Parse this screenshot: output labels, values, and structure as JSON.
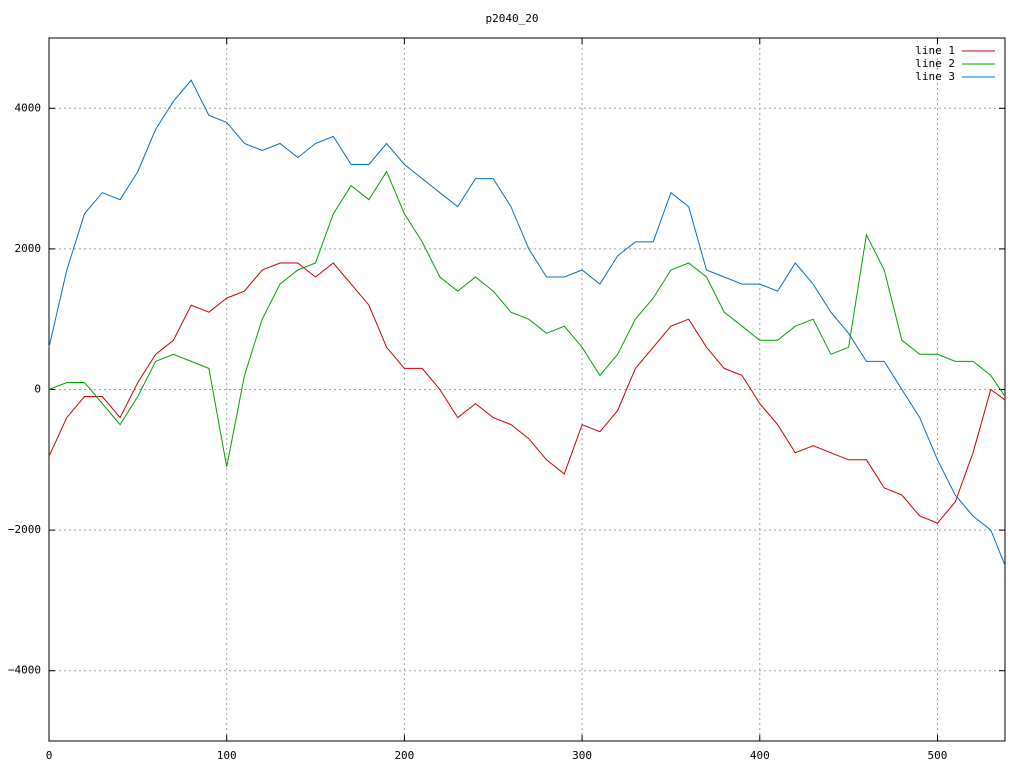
{
  "chart_data": {
    "type": "line",
    "title": "p2040_20",
    "x": [
      0,
      10,
      20,
      30,
      40,
      50,
      60,
      70,
      80,
      90,
      100,
      110,
      120,
      130,
      140,
      150,
      160,
      170,
      180,
      190,
      200,
      210,
      220,
      230,
      240,
      250,
      260,
      270,
      280,
      290,
      300,
      310,
      320,
      330,
      340,
      350,
      360,
      370,
      380,
      390,
      400,
      410,
      420,
      430,
      440,
      450,
      460,
      470,
      480,
      490,
      500,
      510,
      520,
      530,
      538
    ],
    "series": [
      {
        "name": "line 1",
        "color": "#cc0000",
        "values": [
          -950,
          -400,
          -100,
          -100,
          -400,
          100,
          500,
          700,
          1200,
          1100,
          1300,
          1400,
          1700,
          1800,
          1800,
          1600,
          1800,
          1500,
          1200,
          600,
          300,
          300,
          0,
          -400,
          -200,
          -400,
          -500,
          -700,
          -1000,
          -1200,
          -500,
          -600,
          -300,
          300,
          600,
          900,
          1000,
          600,
          300,
          200,
          -200,
          -500,
          -900,
          -800,
          -900,
          -1000,
          -1000,
          -1400,
          -1500,
          -1800,
          -1900,
          -1600,
          -900,
          0,
          -150
        ]
      },
      {
        "name": "line 2",
        "color": "#00a000",
        "values": [
          0,
          100,
          100,
          -200,
          -500,
          -100,
          400,
          500,
          400,
          300,
          -1100,
          200,
          1000,
          1500,
          1700,
          1800,
          2500,
          2900,
          2700,
          3100,
          2500,
          2100,
          1600,
          1400,
          1600,
          1400,
          1100,
          1000,
          800,
          900,
          600,
          200,
          500,
          1000,
          1300,
          1700,
          1800,
          1600,
          1100,
          900,
          700,
          700,
          900,
          1000,
          500,
          600,
          2200,
          1700,
          700,
          500,
          500,
          400,
          400,
          200,
          -100
        ]
      },
      {
        "name": "line 3",
        "color": "#0070c8",
        "values": [
          600,
          1700,
          2500,
          2800,
          2700,
          3100,
          3700,
          4100,
          4400,
          3900,
          3800,
          3500,
          3400,
          3500,
          3300,
          3500,
          3600,
          3200,
          3200,
          3500,
          3200,
          3000,
          2800,
          2600,
          3000,
          3000,
          2600,
          2000,
          1600,
          1600,
          1700,
          1500,
          1900,
          2100,
          2100,
          2800,
          2600,
          1700,
          1600,
          1500,
          1500,
          1400,
          1800,
          1500,
          1100,
          800,
          400,
          400,
          0,
          -400,
          -1000,
          -1500,
          -1800,
          -2000,
          -2500
        ]
      }
    ],
    "xlim": [
      0,
      538
    ],
    "ylim": [
      -5000,
      5000
    ],
    "xticks": [
      0,
      100,
      200,
      300,
      400,
      500
    ],
    "yticks": [
      {
        "value": -4000,
        "label": "−4000"
      },
      {
        "value": -2000,
        "label": "−2000"
      },
      0,
      2000,
      4000
    ],
    "grid": true,
    "legend": "top-right"
  }
}
